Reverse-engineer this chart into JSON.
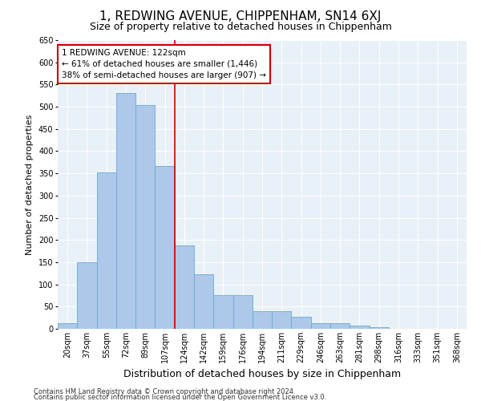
{
  "title": "1, REDWING AVENUE, CHIPPENHAM, SN14 6XJ",
  "subtitle": "Size of property relative to detached houses in Chippenham",
  "xlabel": "Distribution of detached houses by size in Chippenham",
  "ylabel": "Number of detached properties",
  "bar_labels": [
    "20sqm",
    "37sqm",
    "55sqm",
    "72sqm",
    "89sqm",
    "107sqm",
    "124sqm",
    "142sqm",
    "159sqm",
    "176sqm",
    "194sqm",
    "211sqm",
    "229sqm",
    "246sqm",
    "263sqm",
    "281sqm",
    "298sqm",
    "316sqm",
    "333sqm",
    "351sqm",
    "368sqm"
  ],
  "bar_values": [
    12,
    150,
    352,
    530,
    503,
    367,
    187,
    122,
    76,
    76,
    40,
    40,
    27,
    12,
    12,
    8,
    3,
    0,
    0,
    0,
    0
  ],
  "bar_color": "#adc8e8",
  "bar_edge_color": "#6aaad4",
  "vline_index": 6.0,
  "annotation_text": "1 REDWING AVENUE: 122sqm\n← 61% of detached houses are smaller (1,446)\n38% of semi-detached houses are larger (907) →",
  "annotation_box_color": "#ffffff",
  "annotation_box_edge": "#cc0000",
  "vline_color": "#cc0000",
  "ylim": [
    0,
    650
  ],
  "yticks": [
    0,
    50,
    100,
    150,
    200,
    250,
    300,
    350,
    400,
    450,
    500,
    550,
    600,
    650
  ],
  "background_color": "#e8f0f8",
  "grid_color": "#ffffff",
  "footer_line1": "Contains HM Land Registry data © Crown copyright and database right 2024.",
  "footer_line2": "Contains public sector information licensed under the Open Government Licence v3.0.",
  "title_fontsize": 11,
  "subtitle_fontsize": 9,
  "ylabel_fontsize": 8,
  "xlabel_fontsize": 9,
  "tick_fontsize": 7,
  "annotation_fontsize": 7.5
}
